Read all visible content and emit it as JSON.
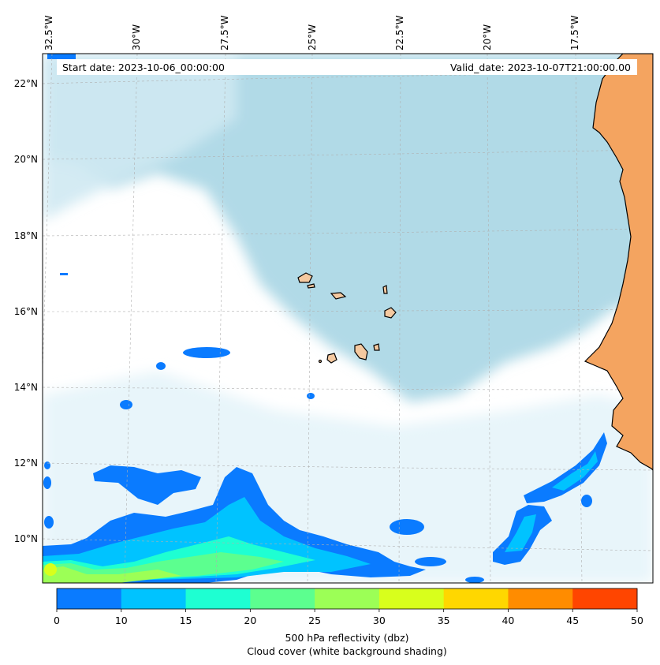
{
  "header": {
    "start_date": "Start date: 2023-10-06_00:00:00",
    "valid_date": "Valid_date: 2023-10-07T21:00:00.00"
  },
  "lon_labels": [
    "32.5°W",
    "30°W",
    "27.5°W",
    "25°W",
    "22.5°W",
    "20°W",
    "17.5°W"
  ],
  "lat_labels": [
    "22°N",
    "20°N",
    "18°N",
    "16°N",
    "14°N",
    "12°N",
    "10°N"
  ],
  "colorbar": {
    "ticks": [
      "0",
      "10",
      "15",
      "20",
      "25",
      "30",
      "35",
      "40",
      "45",
      "50"
    ],
    "colors": [
      "#0a7bff",
      "#00c3ff",
      "#1effd2",
      "#5cff8f",
      "#9cff56",
      "#d8ff1c",
      "#ffd700",
      "#ff8c00",
      "#ff4500"
    ],
    "label_line1": "500 hPa reflectivity (dbz)",
    "label_line2": "Cloud cover (white background shading)"
  },
  "map_colors": {
    "cloud": "#add8e6",
    "land_africa": "#f4a460",
    "islands": "#f5c9a0",
    "coastline": "#000000"
  }
}
